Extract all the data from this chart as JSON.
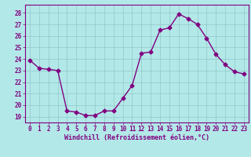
{
  "x": [
    0,
    1,
    2,
    3,
    4,
    5,
    6,
    7,
    8,
    9,
    10,
    11,
    12,
    13,
    14,
    15,
    16,
    17,
    18,
    19,
    20,
    21,
    22,
    23
  ],
  "y": [
    23.9,
    23.2,
    23.1,
    23.0,
    19.5,
    19.4,
    19.1,
    19.1,
    19.5,
    19.5,
    20.6,
    21.7,
    24.5,
    24.6,
    26.5,
    26.7,
    27.9,
    27.5,
    27.0,
    25.8,
    24.4,
    23.5,
    22.9,
    22.7
  ],
  "line_color": "#800080",
  "marker": "D",
  "marker_size": 2.5,
  "line_width": 1.0,
  "bg_color": "#b3e8e8",
  "grid_color": "#90c8c8",
  "xlabel": "Windchill (Refroidissement éolien,°C)",
  "xlabel_color": "#800080",
  "ylabel_ticks": [
    19,
    20,
    21,
    22,
    23,
    24,
    25,
    26,
    27,
    28
  ],
  "xtick_labels": [
    "0",
    "1",
    "2",
    "3",
    "4",
    "5",
    "6",
    "7",
    "8",
    "9",
    "10",
    "11",
    "12",
    "13",
    "14",
    "15",
    "16",
    "17",
    "18",
    "19",
    "20",
    "21",
    "22",
    "23"
  ],
  "ylim": [
    18.5,
    28.7
  ],
  "xlim": [
    -0.5,
    23.5
  ],
  "tick_color": "#800080",
  "spine_color": "#800080",
  "tick_fontsize": 5.5,
  "xlabel_fontsize": 6.0
}
